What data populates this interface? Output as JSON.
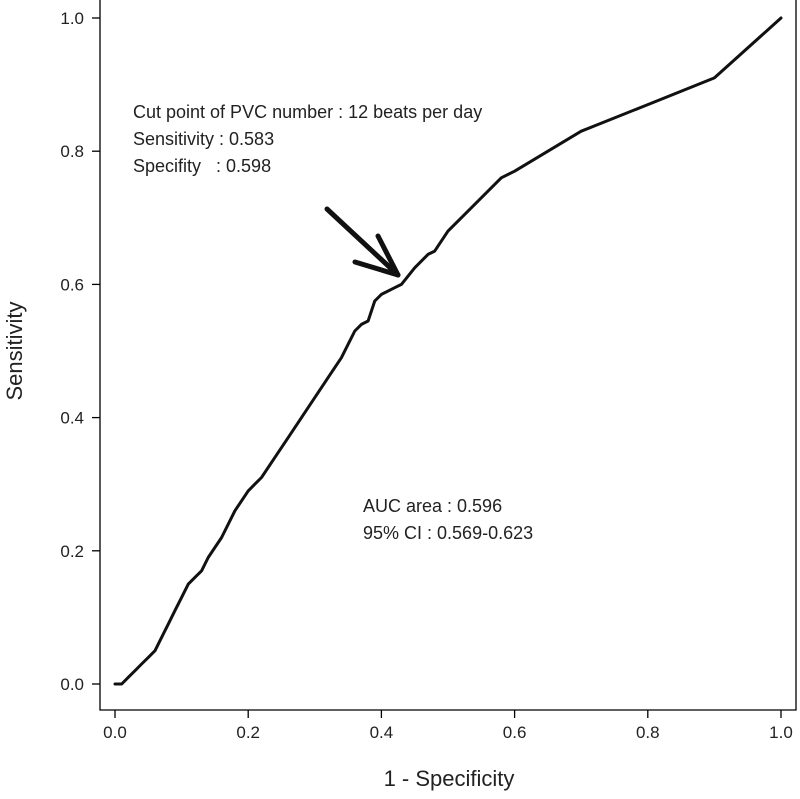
{
  "chart_data": {
    "type": "line",
    "xlabel": "1 - Specificity",
    "ylabel": "Sensitivity",
    "xlim": [
      0.0,
      1.0
    ],
    "ylim": [
      0.0,
      1.0
    ],
    "x_ticks": [
      "0.0",
      "0.2",
      "0.4",
      "0.6",
      "0.8",
      "1.0"
    ],
    "y_ticks": [
      "0.0",
      "0.2",
      "0.4",
      "0.6",
      "0.8",
      "1.0"
    ],
    "grid": false,
    "series": [
      {
        "x": [
          0.0,
          0.01,
          0.02,
          0.03,
          0.04,
          0.05,
          0.06,
          0.07,
          0.08,
          0.09,
          0.1,
          0.11,
          0.12,
          0.13,
          0.14,
          0.16,
          0.18,
          0.2,
          0.22,
          0.24,
          0.26,
          0.28,
          0.3,
          0.32,
          0.34,
          0.35,
          0.36,
          0.37,
          0.38,
          0.39,
          0.4,
          0.42,
          0.43,
          0.45,
          0.47,
          0.48,
          0.5,
          0.52,
          0.55,
          0.58,
          0.6,
          0.65,
          0.7,
          0.8,
          0.9,
          1.0
        ],
        "y": [
          0.0,
          0.0,
          0.01,
          0.02,
          0.03,
          0.04,
          0.05,
          0.07,
          0.09,
          0.11,
          0.13,
          0.15,
          0.16,
          0.17,
          0.19,
          0.22,
          0.26,
          0.29,
          0.31,
          0.34,
          0.37,
          0.4,
          0.43,
          0.46,
          0.49,
          0.51,
          0.53,
          0.54,
          0.545,
          0.575,
          0.585,
          0.595,
          0.6,
          0.625,
          0.645,
          0.65,
          0.68,
          0.7,
          0.73,
          0.76,
          0.77,
          0.8,
          0.83,
          0.87,
          0.91,
          1.0
        ]
      }
    ],
    "annotations": {
      "cut_point": [
        "Cut point of PVC number : 12 beats per day",
        "Sensitivity : 0.583",
        "Specifity   : 0.598"
      ],
      "auc": [
        "AUC area : 0.596",
        "95% CI : 0.569-0.623"
      ],
      "arrow_target": {
        "x": 0.43,
        "y": 0.6
      }
    }
  }
}
